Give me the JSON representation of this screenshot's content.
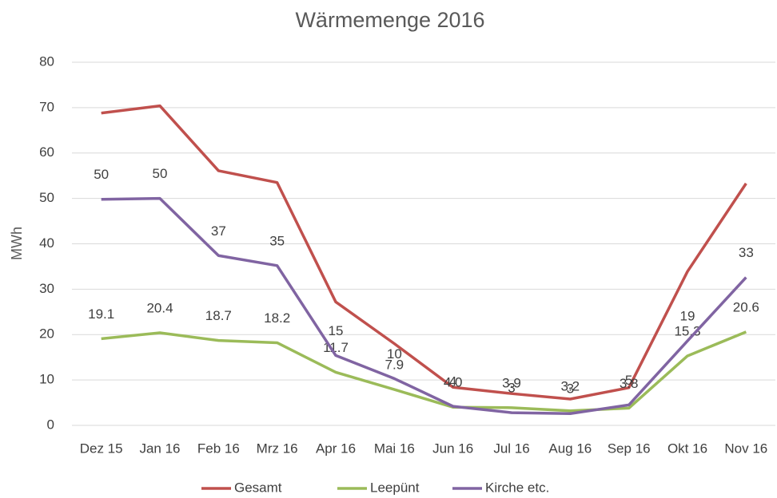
{
  "chart_data": {
    "type": "line",
    "title": "Wärmemenge 2016",
    "y_label": "MWh",
    "categories": [
      "Dez 15",
      "Jan 16",
      "Feb 16",
      "Mrz 16",
      "Apr 16",
      "Mai 16",
      "Jun 16",
      "Jul 16",
      "Aug 16",
      "Sep 16",
      "Okt 16",
      "Nov 16"
    ],
    "series": [
      {
        "name": "Gesamt",
        "color": "#c0504d",
        "values": [
          68.8,
          70.4,
          56.1,
          53.5,
          27.2,
          18,
          8.4,
          7,
          5.8,
          8.3,
          33.9,
          53.3
        ]
      },
      {
        "name": "Leepünt",
        "color": "#9bbb59",
        "values": [
          19.1,
          20.4,
          18.7,
          18.2,
          11.7,
          7.9,
          4,
          3.9,
          3.2,
          3.8,
          15.3,
          20.6
        ],
        "value_labels": [
          "19.1",
          "20.4",
          "18.7",
          "18.2",
          "11.7",
          "7.9",
          "4.0",
          "3.9",
          "3.2",
          "3.8",
          "15.3",
          "20.6"
        ]
      },
      {
        "name": "Kirche etc.",
        "color": "#8064a2",
        "values": [
          49.8,
          50,
          37.4,
          35.2,
          15.4,
          10.3,
          4.2,
          2.8,
          2.6,
          4.5,
          18.6,
          32.6
        ],
        "value_labels": [
          "50",
          "50",
          "37",
          "35",
          "15",
          "10",
          "4",
          "3",
          "3",
          "5",
          "19",
          "33"
        ]
      }
    ],
    "ylim": [
      0,
      80
    ],
    "yticks": [
      0,
      10,
      20,
      30,
      40,
      50,
      60,
      70,
      80
    ],
    "grid": true,
    "legend": "bottom"
  }
}
